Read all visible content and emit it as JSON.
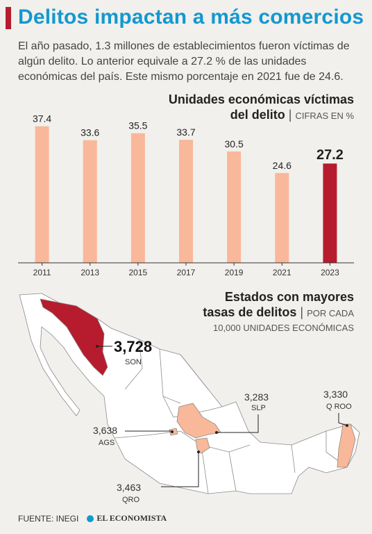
{
  "headline": "Delitos impactan a más comercios",
  "lead": "El año pasado, 1.3 millones de establecimientos fueron víctimas de algún delito. Lo anterior equivale a 27.2 % de las unidades económicas del país. Este mismo porcentaje en 2021 fue de 24.6.",
  "chart_title": {
    "line1": "Unidades económicas víctimas",
    "line2": "del delito",
    "unit": "CIFRAS EN %"
  },
  "chart_data": {
    "type": "bar",
    "categories": [
      "2011",
      "2013",
      "2015",
      "2017",
      "2019",
      "2021",
      "2023"
    ],
    "values": [
      37.4,
      33.6,
      35.5,
      33.7,
      30.5,
      24.6,
      27.2
    ],
    "ylim": [
      0,
      40
    ],
    "highlight_index": 6,
    "colors": {
      "bar": "#f9b89a",
      "highlight": "#b71c2e"
    }
  },
  "map": {
    "title_line1": "Estados con mayores",
    "title_line2": "tasas de delitos",
    "unit_line1": "POR CADA",
    "unit_line2": "10,000 UNIDADES ECONÓMICAS",
    "states": [
      {
        "code": "SON",
        "value": "3,728"
      },
      {
        "code": "SLP",
        "value": "3,283"
      },
      {
        "code": "Q ROO",
        "value": "3,330"
      },
      {
        "code": "AGS",
        "value": "3,638"
      },
      {
        "code": "QRO",
        "value": "3,463"
      }
    ],
    "colors": {
      "top": "#b71c2e",
      "high": "#f9b89a",
      "base": "#ffffff",
      "border": "#8a8a8a"
    }
  },
  "footer": {
    "source": "FUENTE: INEGI",
    "brand": "EL ECONOMISTA"
  }
}
